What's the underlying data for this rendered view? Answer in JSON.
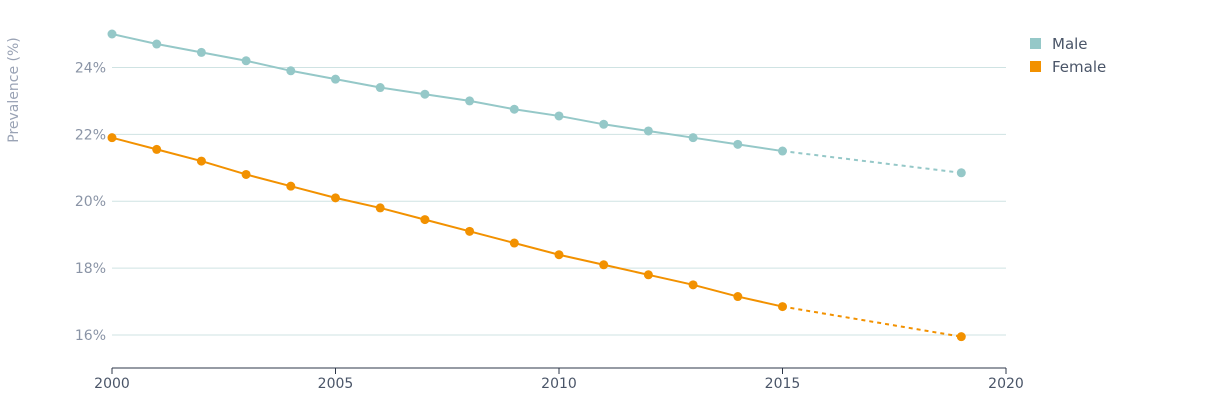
{
  "chart_data": {
    "type": "line",
    "title": "",
    "ylabel": "Prevalence (%)",
    "xlabel": "",
    "xlim": [
      2000,
      2020
    ],
    "ylim": [
      15,
      25
    ],
    "x_ticks": [
      "2000",
      "2005",
      "2010",
      "2015",
      "2020"
    ],
    "y_ticks": [
      "16%",
      "18%",
      "20%",
      "22%",
      "24%"
    ],
    "grid": "horizontal",
    "legend": "top-right",
    "series": [
      {
        "name": "Male",
        "color": "#95c8c8",
        "x": [
          2000,
          2001,
          2002,
          2003,
          2004,
          2005,
          2006,
          2007,
          2008,
          2009,
          2010,
          2011,
          2012,
          2013,
          2014,
          2015
        ],
        "values": [
          25.0,
          24.7,
          24.45,
          24.2,
          23.9,
          23.65,
          23.4,
          23.2,
          23.0,
          22.75,
          22.55,
          22.3,
          22.1,
          21.9,
          21.7,
          21.5
        ],
        "projection": {
          "x": [
            2015,
            2019
          ],
          "values": [
            21.5,
            20.85
          ]
        }
      },
      {
        "name": "Female",
        "color": "#f29100",
        "x": [
          2000,
          2001,
          2002,
          2003,
          2004,
          2005,
          2006,
          2007,
          2008,
          2009,
          2010,
          2011,
          2012,
          2013,
          2014,
          2015
        ],
        "values": [
          21.9,
          21.55,
          21.2,
          20.8,
          20.45,
          20.1,
          19.8,
          19.45,
          19.1,
          18.75,
          18.4,
          18.1,
          17.8,
          17.5,
          17.15,
          16.85
        ],
        "projection": {
          "x": [
            2015,
            2019
          ],
          "values": [
            16.85,
            15.95
          ]
        }
      }
    ]
  }
}
